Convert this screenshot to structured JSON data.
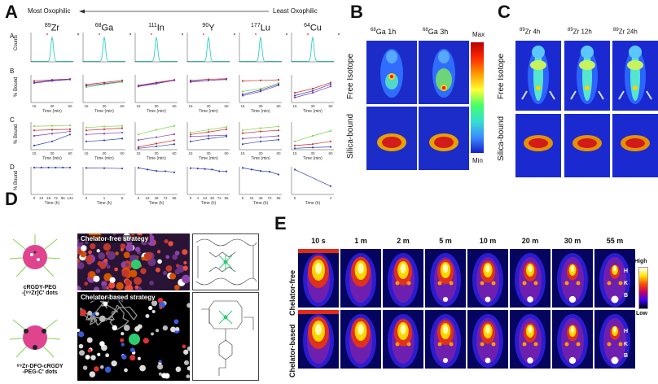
{
  "panels": {
    "A": "A",
    "B": "B",
    "C": "C",
    "D": "D",
    "E": "E"
  },
  "panelA": {
    "scale_left": "Most Oxophilic",
    "scale_right": "Least  Oxophilic",
    "isotopes": [
      {
        "sup": "89",
        "el": "Zr"
      },
      {
        "sup": "68",
        "el": "Ga"
      },
      {
        "sup": "111",
        "el": "In"
      },
      {
        "sup": "90",
        "el": "Y"
      },
      {
        "sup": "177",
        "el": "Lu"
      },
      {
        "sup": "64",
        "el": "Cu"
      }
    ],
    "rows": [
      "A",
      "B",
      "C",
      "D"
    ],
    "ylabel_A": "Counts",
    "ylabel_bound": "% Bound",
    "xlabel_min": "Time (min)",
    "xlabel_h": "Time (h)",
    "ticks_min": [
      "15",
      "30",
      "60"
    ],
    "ticks_D": [
      [
        "0",
        "24",
        "48",
        "72",
        "96",
        "144"
      ],
      [
        "0",
        "1",
        "5"
      ],
      [
        "0",
        "24",
        "48",
        "72",
        "96"
      ],
      [
        "0",
        "4",
        "24",
        "48",
        "72",
        "96"
      ],
      [
        "0",
        "24",
        "48",
        "72",
        "96"
      ],
      [
        "0",
        "4"
      ]
    ],
    "ytick_100": "100"
  },
  "panelB": {
    "titles": [
      {
        "sup": "68",
        "text": "Ga 1h"
      },
      {
        "sup": "68",
        "text": "Ga 3h"
      }
    ],
    "row1": "Free Isotope",
    "row2": "Silica-bound",
    "scale_max": "Max",
    "scale_min": "Min"
  },
  "panelC": {
    "titles": [
      {
        "sup": "89",
        "text": "Zr 4h"
      },
      {
        "sup": "89",
        "text": "Zr 12h"
      },
      {
        "sup": "89",
        "text": "Zr 24h"
      }
    ],
    "row1": "Free Isotope",
    "row2": "Silica-bound"
  },
  "panelD": {
    "strategy1": "Chelator-free strategy",
    "strategy2": "Chelator-based strategy",
    "dot1_line1": "cRGDY-PEG",
    "dot1_line2": "-[⁸⁹Zr]C' dots",
    "dot2_line1": "⁸⁹Zr-DFO-cRGDY",
    "dot2_line2": "-PEG-C' dots"
  },
  "panelE": {
    "times": [
      "10 s",
      "1 m",
      "2 m",
      "5 m",
      "10 m",
      "20 m",
      "30 m",
      "55 m"
    ],
    "row1": "Chelator-free",
    "row2": "Chelator-based",
    "organs": [
      "H",
      "K",
      "B"
    ],
    "scale_high": "High",
    "scale_low": "Low"
  },
  "colors": {
    "red": "#d62728",
    "green": "#7fd64a",
    "blue": "#2b3cb3",
    "purple": "#7a3db8",
    "cyan": "#2fd0c8"
  }
}
